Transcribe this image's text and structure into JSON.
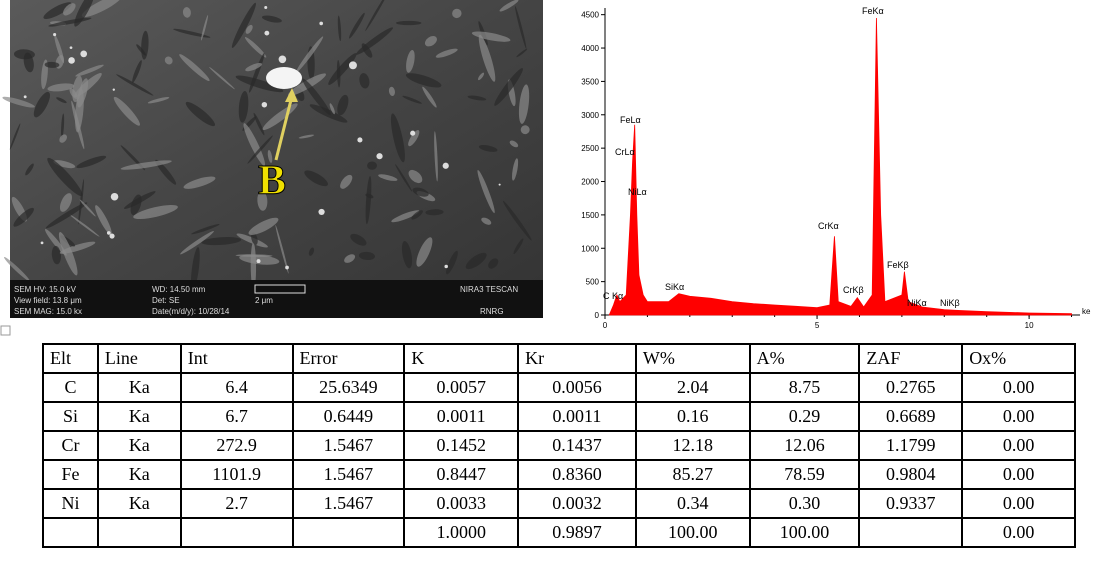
{
  "sem": {
    "marker": "B",
    "info": [
      "SEM HV: 15.0 kV",
      "WD: 14.50 mm",
      "NIRA3 TESCAN",
      "View field: 13.8 μm",
      "Det: SE",
      "2 μm",
      "SEM MAG: 15.0 kx",
      "Date(m/d/y): 10/28/14",
      "RNRG"
    ]
  },
  "chart_data": {
    "type": "area",
    "color": "#ff0000",
    "x_label": "ke",
    "x": [
      0.1,
      0.2,
      0.28,
      0.35,
      0.5,
      0.6,
      0.65,
      0.7,
      0.75,
      0.8,
      0.9,
      1.0,
      1.5,
      1.74,
      2.0,
      2.5,
      3.0,
      3.5,
      4.0,
      4.5,
      5.0,
      5.3,
      5.41,
      5.5,
      5.8,
      5.95,
      6.1,
      6.3,
      6.4,
      6.5,
      6.6,
      7.0,
      7.06,
      7.15,
      7.48,
      8.0,
      8.26,
      9.0,
      10.0,
      11.0
    ],
    "values": [
      0,
      150,
      300,
      200,
      300,
      1500,
      2300,
      2850,
      1500,
      600,
      300,
      200,
      200,
      320,
      280,
      250,
      200,
      170,
      150,
      130,
      110,
      150,
      1180,
      200,
      130,
      260,
      120,
      300,
      4450,
      1500,
      200,
      300,
      650,
      200,
      120,
      80,
      70,
      50,
      30,
      20
    ],
    "xlim": [
      0,
      11.2
    ],
    "ylim": [
      0,
      4600
    ],
    "xticks": [
      0,
      5,
      10
    ],
    "yticks": [
      0,
      500,
      1000,
      1500,
      2000,
      2500,
      3000,
      3500,
      4000,
      4500
    ],
    "annotations": [
      "FeKα",
      "FeLα",
      "CrLα",
      "NiLα",
      "CrKα",
      "FeKβ",
      "SiKα",
      "CrKβ",
      "C Kα",
      "NiKα",
      "NiKβ"
    ]
  },
  "table": {
    "header": [
      "Elt",
      "Line",
      "Int",
      "Error",
      "K",
      "Kr",
      "W%",
      "A%",
      "ZAF",
      "Ox%"
    ],
    "rows": [
      [
        "C",
        "Ka",
        "6.4",
        "25.6349",
        "0.0057",
        "0.0056",
        "2.04",
        "8.75",
        "0.2765",
        "0.00"
      ],
      [
        "Si",
        "Ka",
        "6.7",
        "0.6449",
        "0.0011",
        "0.0011",
        "0.16",
        "0.29",
        "0.6689",
        "0.00"
      ],
      [
        "Cr",
        "Ka",
        "272.9",
        "1.5467",
        "0.1452",
        "0.1437",
        "12.18",
        "12.06",
        "1.1799",
        "0.00"
      ],
      [
        "Fe",
        "Ka",
        "1101.9",
        "1.5467",
        "0.8447",
        "0.8360",
        "85.27",
        "78.59",
        "0.9804",
        "0.00"
      ],
      [
        "Ni",
        "Ka",
        "2.7",
        "1.5467",
        "0.0033",
        "0.0032",
        "0.34",
        "0.30",
        "0.9337",
        "0.00"
      ],
      [
        "",
        "",
        "",
        "",
        "1.0000",
        "0.9897",
        "100.00",
        "100.00",
        "",
        "0.00"
      ]
    ]
  }
}
